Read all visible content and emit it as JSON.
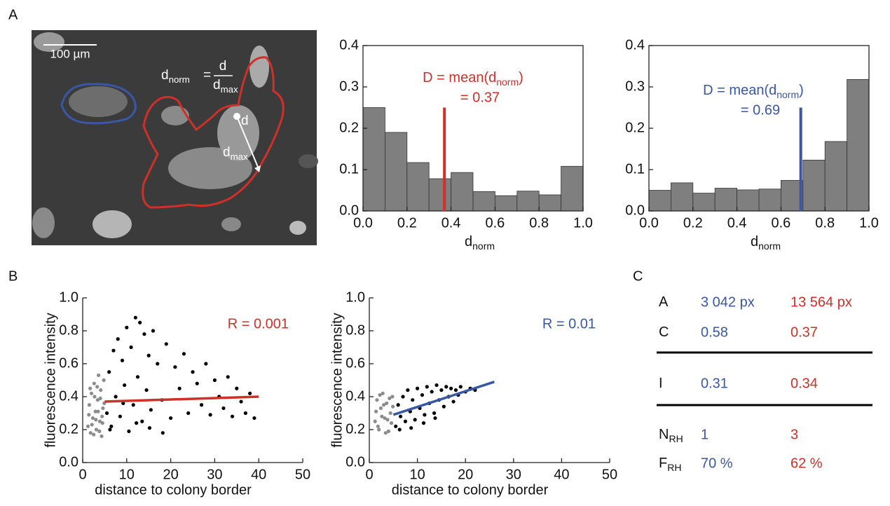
{
  "panels": {
    "a": "A",
    "b": "B",
    "c": "C"
  },
  "image": {
    "scale_bar": "100 µm",
    "formula": {
      "lhs": {
        "main": "d",
        "sub": "norm"
      },
      "eq": "=",
      "num": "d",
      "den": {
        "main": "d",
        "sub": "max"
      }
    },
    "d": "d",
    "dmax": {
      "main": "d",
      "sub": "max"
    }
  },
  "chart_data": [
    {
      "type": "histogram",
      "bins": [
        0,
        0.1,
        0.2,
        0.3,
        0.4,
        0.5,
        0.6,
        0.7,
        0.8,
        0.9,
        1.0
      ],
      "values": [
        0.25,
        0.19,
        0.117,
        0.078,
        0.093,
        0.047,
        0.037,
        0.048,
        0.039,
        0.108
      ],
      "color": "#7f7f7f",
      "xlim": [
        0,
        1
      ],
      "ylim": [
        0,
        0.4
      ],
      "xticks": [
        {
          "value": 0,
          "label": "0.0"
        },
        0.2,
        0.4,
        0.6,
        0.8,
        {
          "value": 1,
          "label": "1.0"
        }
      ],
      "yticks": [
        {
          "value": 0,
          "label": "0.0"
        },
        0.1,
        0.2,
        0.3,
        0.4
      ],
      "xlabel": {
        "main": "d",
        "sub": "norm"
      },
      "mean": 0.37,
      "mean_color": "#cf3028",
      "mean_label": {
        "pre": "D = mean(d",
        "sub": "norm",
        "post": ")",
        "value": "= 0.37"
      }
    },
    {
      "type": "histogram",
      "bins": [
        0,
        0.1,
        0.2,
        0.3,
        0.4,
        0.5,
        0.6,
        0.7,
        0.8,
        0.9,
        1.0
      ],
      "values": [
        0.05,
        0.068,
        0.043,
        0.055,
        0.051,
        0.053,
        0.074,
        0.123,
        0.168,
        0.318
      ],
      "color": "#7f7f7f",
      "xlim": [
        0,
        1
      ],
      "ylim": [
        0,
        0.4
      ],
      "xticks": [
        {
          "value": 0,
          "label": "0.0"
        },
        0.2,
        0.4,
        0.6,
        0.8,
        {
          "value": 1,
          "label": "1.0"
        }
      ],
      "yticks": [
        {
          "value": 0,
          "label": "0.0"
        },
        0.1,
        0.2,
        0.3,
        0.4
      ],
      "xlabel": {
        "main": "d",
        "sub": "norm"
      },
      "mean": 0.69,
      "mean_color": "#3a57a5",
      "mean_label": {
        "pre": "D = mean(d",
        "sub": "norm",
        "post": ")",
        "value": "= 0.69"
      }
    },
    {
      "type": "scatter",
      "xlim": [
        0,
        50
      ],
      "ylim": [
        0,
        1
      ],
      "xticks": [
        0,
        10,
        20,
        30,
        40,
        50
      ],
      "yticks": [
        {
          "value": 0,
          "label": "0.0"
        },
        0.2,
        0.4,
        0.6,
        0.8,
        {
          "value": 1,
          "label": "1.0"
        }
      ],
      "xlabel": "distance to colony border",
      "ylabel": "fluorescence intensity",
      "annotation": "R = 0.001",
      "annotation_color": "#cf3028",
      "series": [
        {
          "color": "#8c8c8c",
          "x": [
            1.2,
            1.5,
            1.8,
            2.0,
            2.3,
            2.6,
            2.9,
            3.1,
            3.4,
            3.6,
            3.9,
            4.1,
            4.3,
            4.6,
            4.8,
            1.4,
            2.1,
            2.7,
            3.3,
            3.8,
            4.4,
            4.9,
            1.7,
            2.5,
            3.0,
            3.5,
            4.0,
            4.5
          ],
          "values": [
            0.22,
            0.35,
            0.18,
            0.42,
            0.27,
            0.48,
            0.31,
            0.2,
            0.38,
            0.53,
            0.25,
            0.44,
            0.16,
            0.33,
            0.5,
            0.29,
            0.23,
            0.4,
            0.46,
            0.19,
            0.28,
            0.36,
            0.45,
            0.17,
            0.26,
            0.31,
            0.39,
            0.24
          ]
        },
        {
          "color": "#000000",
          "x": [
            5.5,
            6,
            6.5,
            7,
            7.5,
            8,
            8.5,
            9,
            9.5,
            10,
            10.5,
            11,
            11.5,
            12,
            12.5,
            13,
            13.5,
            14,
            14.5,
            15,
            15.5,
            16,
            17,
            18,
            19,
            20,
            21,
            22,
            23,
            24,
            25,
            26,
            27,
            28,
            29,
            30,
            31,
            32,
            33,
            34,
            35,
            36,
            37,
            38,
            39,
            6.2,
            9.2,
            12.2,
            15.2,
            18.2
          ],
          "values": [
            0.3,
            0.55,
            0.22,
            0.68,
            0.4,
            0.75,
            0.28,
            0.62,
            0.47,
            0.82,
            0.19,
            0.7,
            0.35,
            0.88,
            0.52,
            0.85,
            0.25,
            0.78,
            0.44,
            0.65,
            0.32,
            0.8,
            0.6,
            0.38,
            0.72,
            0.27,
            0.58,
            0.45,
            0.66,
            0.3,
            0.55,
            0.48,
            0.35,
            0.6,
            0.29,
            0.5,
            0.4,
            0.33,
            0.52,
            0.28,
            0.45,
            0.37,
            0.3,
            0.42,
            0.27,
            0.2,
            0.36,
            0.24,
            0.21,
            0.18
          ]
        }
      ],
      "fit": {
        "color": "#cf3028",
        "x": [
          5,
          40
        ],
        "values": [
          0.37,
          0.4
        ]
      }
    },
    {
      "type": "scatter",
      "xlim": [
        0,
        50
      ],
      "ylim": [
        0,
        1
      ],
      "xticks": [
        0,
        10,
        20,
        30,
        40,
        50
      ],
      "yticks": [
        {
          "value": 0,
          "label": "0.0"
        },
        0.2,
        0.4,
        0.6,
        0.8,
        {
          "value": 1,
          "label": "1.0"
        }
      ],
      "xlabel": "distance to colony border",
      "ylabel": "fluorescence intensity",
      "annotation": "R = 0.01",
      "annotation_color": "#3a57a5",
      "series": [
        {
          "color": "#8c8c8c",
          "x": [
            1.2,
            1.6,
            2.0,
            2.4,
            2.8,
            3.2,
            3.6,
            4.0,
            4.4,
            4.8,
            1.4,
            1.8,
            2.2,
            2.6,
            3.0,
            3.4,
            3.8,
            4.2,
            4.6,
            4.9
          ],
          "values": [
            0.25,
            0.38,
            0.2,
            0.33,
            0.42,
            0.27,
            0.36,
            0.19,
            0.3,
            0.4,
            0.31,
            0.22,
            0.41,
            0.28,
            0.35,
            0.18,
            0.26,
            0.39,
            0.24,
            0.34
          ]
        },
        {
          "color": "#000000",
          "x": [
            5.5,
            6,
            6.5,
            7,
            7.5,
            8,
            8.5,
            9,
            9.5,
            10,
            10.5,
            11,
            11.5,
            12,
            12.5,
            13,
            13.5,
            14,
            14.5,
            15,
            15.5,
            16,
            16.5,
            17,
            17.5,
            18,
            18.5,
            19,
            20,
            21,
            22,
            6.3,
            8.7,
            11.3,
            13.7
          ],
          "values": [
            0.22,
            0.35,
            0.28,
            0.4,
            0.25,
            0.44,
            0.31,
            0.38,
            0.26,
            0.45,
            0.33,
            0.41,
            0.29,
            0.46,
            0.36,
            0.43,
            0.3,
            0.47,
            0.38,
            0.44,
            0.34,
            0.46,
            0.4,
            0.45,
            0.37,
            0.44,
            0.41,
            0.46,
            0.43,
            0.45,
            0.44,
            0.2,
            0.21,
            0.24,
            0.27
          ]
        }
      ],
      "fit": {
        "color": "#3a57a5",
        "x": [
          5,
          26
        ],
        "values": [
          0.29,
          0.49
        ]
      }
    }
  ],
  "table": {
    "colors": [
      "#3a57a5",
      "#cf3028"
    ],
    "rows": [
      {
        "label": {
          "main": "A"
        },
        "values": [
          "3 042 px",
          "13 564 px"
        ]
      },
      {
        "label": {
          "main": "C"
        },
        "values": [
          "0.58",
          "0.37"
        ]
      },
      {
        "label": {
          "main": "I"
        },
        "values": [
          "0.31",
          "0.34"
        ]
      },
      {
        "label": {
          "main": "N",
          "sub": "RH"
        },
        "values": [
          "1",
          "3"
        ]
      },
      {
        "label": {
          "main": "F",
          "sub": "RH"
        },
        "values": [
          "70 %",
          "62 %"
        ]
      }
    ]
  }
}
